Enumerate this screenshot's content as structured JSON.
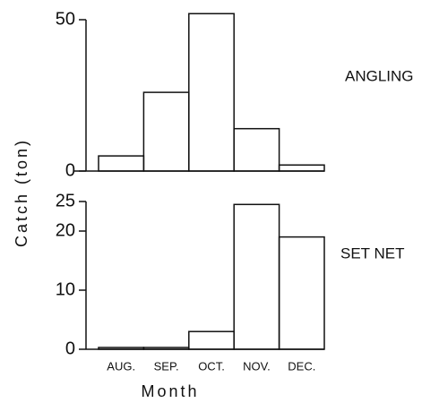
{
  "chart_data": [
    {
      "type": "bar",
      "annotation": "ANGLING",
      "ylabel": "Catch (ton)",
      "values": [
        5,
        26,
        52,
        14,
        2
      ],
      "ylim": [
        0,
        50
      ],
      "yticks": [
        0,
        50
      ]
    },
    {
      "type": "bar",
      "annotation": "SET NET",
      "xlabel": "Month",
      "categories": [
        "AUG.",
        "SEP.",
        "OCT.",
        "NOV.",
        "DEC."
      ],
      "values": [
        0.3,
        0.3,
        3,
        24.5,
        19
      ],
      "ylim": [
        0,
        25
      ],
      "yticks": [
        0,
        10,
        20,
        25
      ]
    }
  ]
}
